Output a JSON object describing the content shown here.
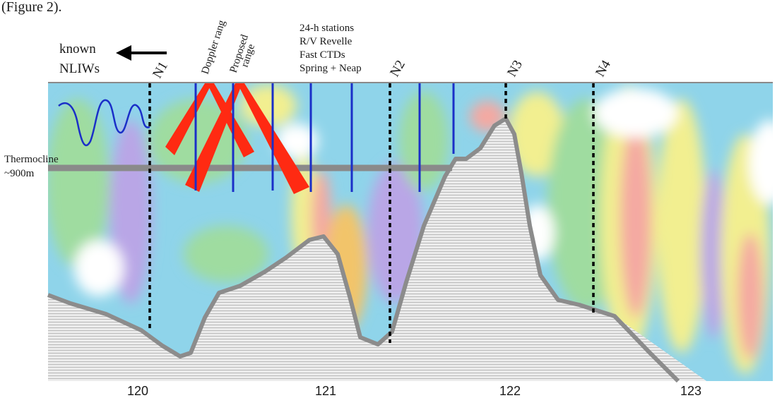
{
  "caption_top": "(Figure 2).",
  "legend": {
    "line1": "known",
    "line2": "NLIWs"
  },
  "moorings": [
    "N1",
    "N2",
    "N3",
    "N4"
  ],
  "range_labels": {
    "doppler": "Doppler rang",
    "proposed_line1": "Proposed",
    "proposed_line2": "range"
  },
  "stations_note": [
    "24-h stations",
    "R/V Revelle",
    "Fast CTDs",
    "Spring + Neap"
  ],
  "thermocline": {
    "line1": "Thermocline",
    "line2": "~900m"
  },
  "x_axis": {
    "ticks": [
      120,
      121,
      122,
      123
    ]
  },
  "colors": {
    "bathymetry": "#8c8c8c",
    "station_lines": "#1a2fc8",
    "wave": "#1a2fc8",
    "beams": "#ff2a12",
    "thermocline_line": "#8a8a8a",
    "mooring_lines": "#000000"
  }
}
